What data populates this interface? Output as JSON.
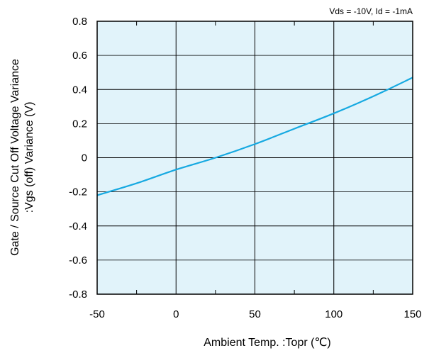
{
  "chart_data": {
    "type": "line",
    "title": "",
    "conditions": "Vds = -10V, Id = -1mA",
    "xlabel": "Ambient Temp. :Topr (℃)",
    "ylabel_line1": "Gate / Source Cut Off Voltage Variance",
    "ylabel_line2": ":Vgs (off) Variance (V)",
    "xlim": [
      -50,
      150
    ],
    "ylim": [
      -0.8,
      0.8
    ],
    "x_ticks": [
      "-50",
      "0",
      "50",
      "100",
      "150"
    ],
    "y_ticks": [
      "0.8",
      "0.6",
      "0.4",
      "0.2",
      "0",
      "-0.2",
      "-0.4",
      "-0.6",
      "-0.8"
    ],
    "grid": true,
    "background_color": "#e1f3fa",
    "line_color": "#16a9e1",
    "series": [
      {
        "x": [
          -50,
          -25,
          0,
          25,
          50,
          75,
          100,
          125,
          150
        ],
        "y": [
          -0.22,
          -0.15,
          -0.07,
          0.0,
          0.08,
          0.17,
          0.26,
          0.36,
          0.47
        ]
      }
    ]
  }
}
